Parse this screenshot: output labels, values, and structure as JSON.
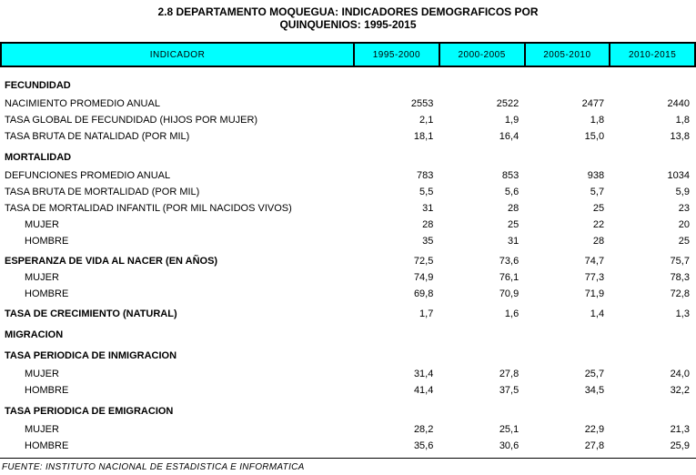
{
  "title": {
    "line1": "2.8 DEPARTAMENTO MOQUEGUA: INDICADORES DEMOGRAFICOS POR",
    "line2": "QUINQUENIOS: 1995-2015"
  },
  "colors": {
    "header_background": "#00FFFF",
    "border": "#000000",
    "text": "#000000",
    "page_background": "#FFFFFF"
  },
  "table": {
    "header": {
      "indicator_label": "INDICADOR",
      "periods": [
        "1995-2000",
        "2000-2005",
        "2005-2010",
        "2010-2015"
      ]
    },
    "rows": [
      {
        "label": "FECUNDIDAD",
        "type": "section"
      },
      {
        "label": "NACIMIENTO PROMEDIO ANUAL",
        "type": "data",
        "values": [
          "2553",
          "2522",
          "2477",
          "2440"
        ]
      },
      {
        "label": "TASA GLOBAL DE FECUNDIDAD (HIJOS POR MUJER)",
        "type": "data",
        "values": [
          "2,1",
          "1,9",
          "1,8",
          "1,8"
        ]
      },
      {
        "label": "TASA BRUTA DE NATALIDAD (POR MIL)",
        "type": "data",
        "values": [
          "18,1",
          "16,4",
          "15,0",
          "13,8"
        ]
      },
      {
        "label": "MORTALIDAD",
        "type": "section"
      },
      {
        "label": "DEFUNCIONES PROMEDIO ANUAL",
        "type": "data",
        "values": [
          "783",
          "853",
          "938",
          "1034"
        ]
      },
      {
        "label": "TASA BRUTA DE MORTALIDAD (POR MIL)",
        "type": "data",
        "values": [
          "5,5",
          "5,6",
          "5,7",
          "5,9"
        ]
      },
      {
        "label": "TASA DE MORTALIDAD INFANTIL (POR MIL NACIDOS VIVOS)",
        "type": "data",
        "values": [
          "31",
          "28",
          "25",
          "23"
        ]
      },
      {
        "label": "MUJER",
        "type": "indent",
        "values": [
          "28",
          "25",
          "22",
          "20"
        ]
      },
      {
        "label": "HOMBRE",
        "type": "indent",
        "values": [
          "35",
          "31",
          "28",
          "25"
        ]
      },
      {
        "label": "ESPERANZA DE VIDA AL NACER (EN AÑOS)",
        "type": "section-data",
        "values": [
          "72,5",
          "73,6",
          "74,7",
          "75,7"
        ]
      },
      {
        "label": "MUJER",
        "type": "indent",
        "values": [
          "74,9",
          "76,1",
          "77,3",
          "78,3"
        ]
      },
      {
        "label": "HOMBRE",
        "type": "indent",
        "values": [
          "69,8",
          "70,9",
          "71,9",
          "72,8"
        ]
      },
      {
        "label": "TASA DE CRECIMIENTO (NATURAL)",
        "type": "section-data",
        "values": [
          "1,7",
          "1,6",
          "1,4",
          "1,3"
        ]
      },
      {
        "label": "MIGRACION",
        "type": "section"
      },
      {
        "label": "TASA PERIODICA DE INMIGRACION",
        "type": "section"
      },
      {
        "label": "MUJER",
        "type": "indent",
        "values": [
          "31,4",
          "27,8",
          "25,7",
          "24,0"
        ]
      },
      {
        "label": "HOMBRE",
        "type": "indent",
        "values": [
          "41,4",
          "37,5",
          "34,5",
          "32,2"
        ]
      },
      {
        "label": "TASA PERIODICA DE EMIGRACION",
        "type": "section"
      },
      {
        "label": "MUJER",
        "type": "indent",
        "values": [
          "28,2",
          "25,1",
          "22,9",
          "21,3"
        ]
      },
      {
        "label": "HOMBRE",
        "type": "indent",
        "values": [
          "35,6",
          "30,6",
          "27,8",
          "25,9"
        ]
      }
    ]
  },
  "footer": {
    "source": "FUENTE: INSTITUTO NACIONAL DE ESTADISTICA E INFORMATICA"
  }
}
